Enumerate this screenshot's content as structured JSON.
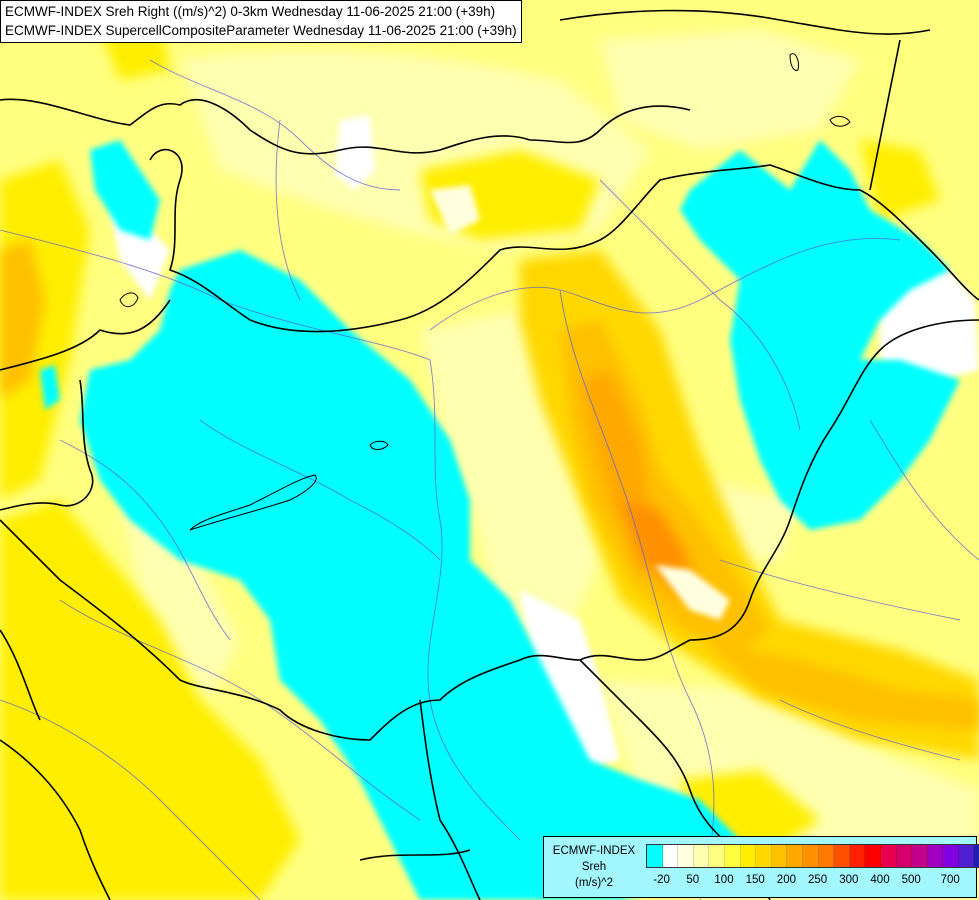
{
  "header": {
    "line1": "ECMWF-INDEX Sreh Right ((m/s)^2) 0-3km Wednesday 11-06-2025 21:00 (+39h)",
    "line2": "ECMWF-INDEX SupercellCompositeParameter Wednesday 11-06-2025 21:00 (+39h)"
  },
  "legend": {
    "title_lines": [
      "ECMWF-INDEX",
      "Sreh",
      "(m/s)^2"
    ],
    "colors": [
      "#00ffff",
      "#ffffff",
      "#ffffe0",
      "#ffffb0",
      "#ffff80",
      "#ffff40",
      "#ffee00",
      "#ffd800",
      "#ffc000",
      "#ffa800",
      "#ff9000",
      "#ff7800",
      "#ff5000",
      "#ff2000",
      "#ff0000",
      "#e8004e",
      "#d4006c",
      "#c0008a",
      "#a000c0",
      "#8000e0",
      "#5020d0",
      "#2020b0",
      "#000080"
    ],
    "ticks": [
      "-20",
      "50",
      "100",
      "150",
      "200",
      "250",
      "300",
      "400",
      "500",
      "700"
    ]
  }
}
